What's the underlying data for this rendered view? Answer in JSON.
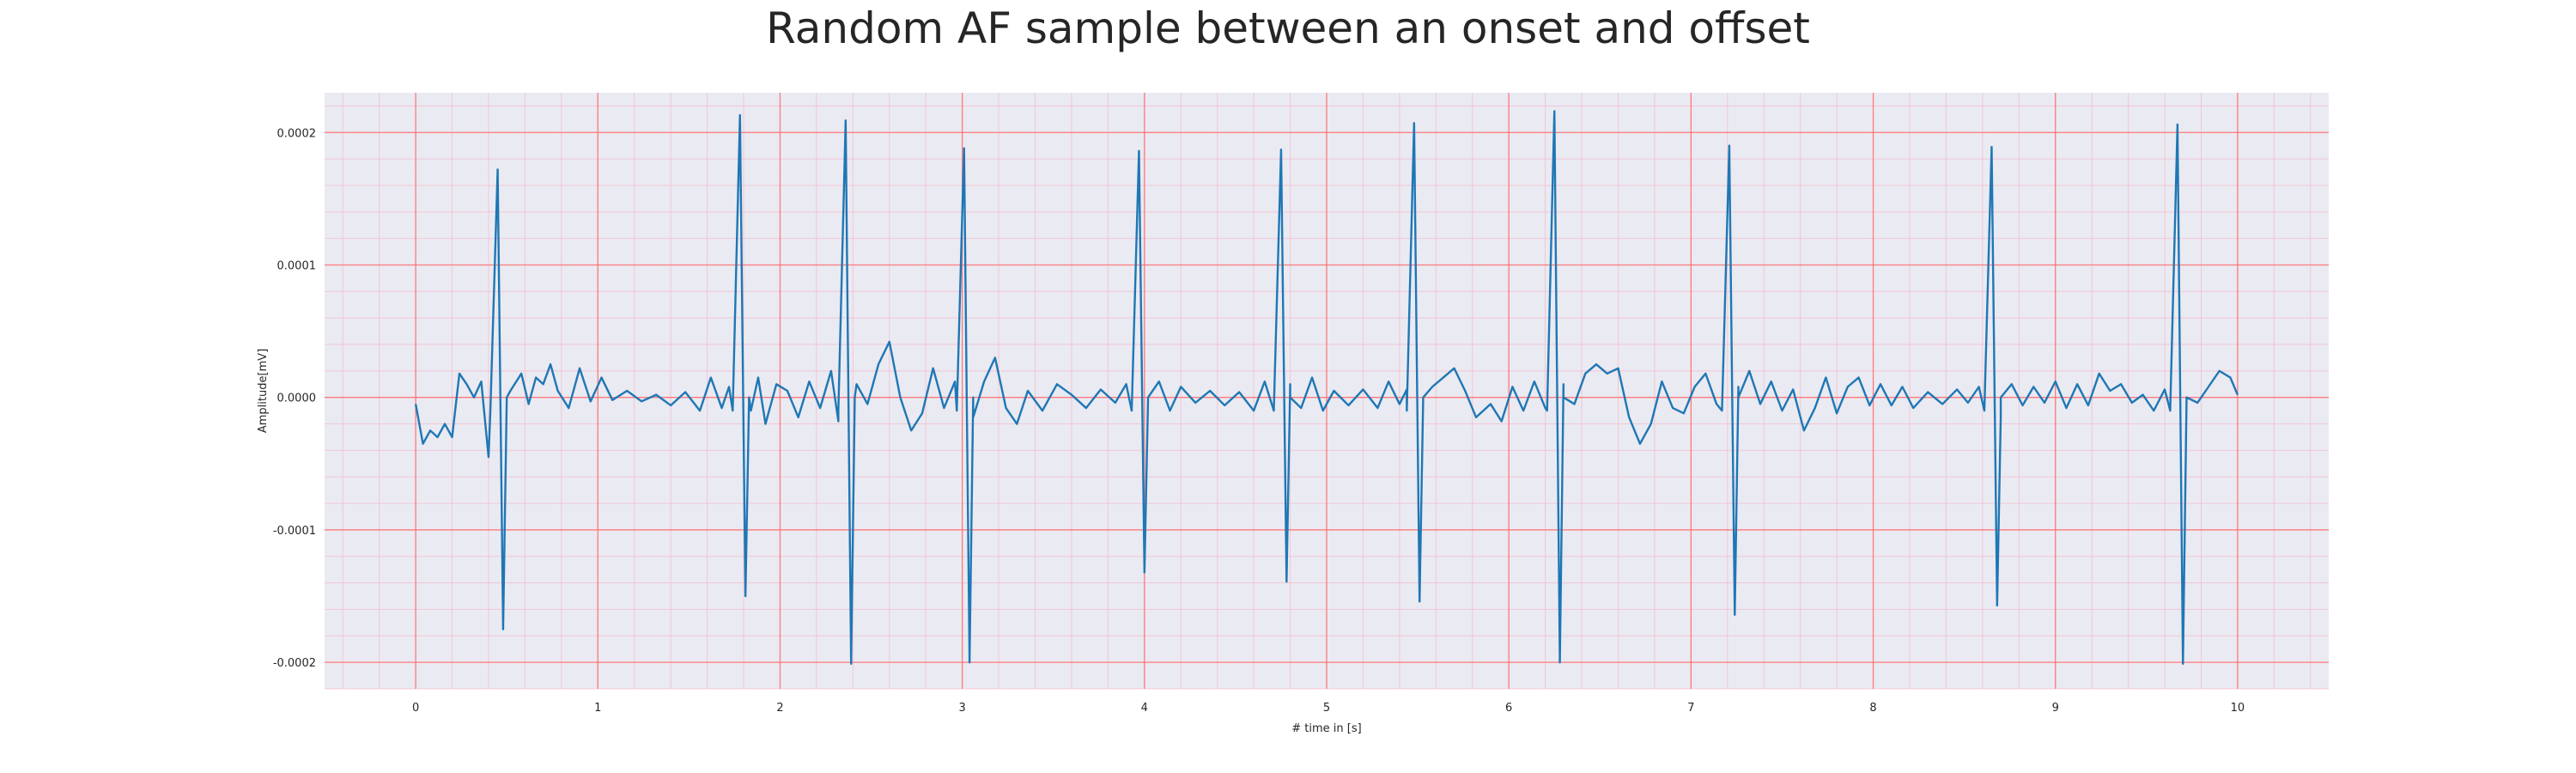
{
  "chart_data": {
    "type": "line",
    "title": "Random AF sample between an onset and offset",
    "xlabel": "# time in [s]",
    "ylabel": "Amplitude[mV]",
    "xlim": [
      -0.5,
      10.5
    ],
    "ylim": [
      -0.00022,
      0.00023
    ],
    "xticks": [
      0,
      1,
      2,
      3,
      4,
      5,
      6,
      7,
      8,
      9,
      10
    ],
    "xtick_labels": [
      "0",
      "1",
      "2",
      "3",
      "4",
      "5",
      "6",
      "7",
      "8",
      "9",
      "10"
    ],
    "yticks": [
      -0.0002,
      -0.0001,
      0.0,
      0.0001,
      0.0002
    ],
    "ytick_labels": [
      "-0.0002",
      "-0.0001",
      "0.0000",
      "0.0001",
      "0.0002"
    ],
    "grid": true,
    "minor_grid": true,
    "colors": {
      "line": "#1f77b4",
      "major_grid": "#ff6b6b",
      "minor_grid": "#f4b8c8",
      "plot_background": "#eaeaf2"
    },
    "beats": [
      {
        "t": 0.45,
        "peak": 0.000172,
        "trough": -0.000175
      },
      {
        "t": 1.78,
        "peak": 0.000213,
        "trough": -0.00015
      },
      {
        "t": 2.36,
        "peak": 0.000209,
        "trough": -0.000201
      },
      {
        "t": 3.01,
        "peak": 0.000188,
        "trough": -0.0002
      },
      {
        "t": 3.97,
        "peak": 0.000186,
        "trough": -0.000132
      },
      {
        "t": 4.75,
        "peak": 0.000187,
        "trough": -0.000139
      },
      {
        "t": 5.48,
        "peak": 0.000207,
        "trough": -0.000154
      },
      {
        "t": 6.25,
        "peak": 0.000216,
        "trough": -0.0002
      },
      {
        "t": 7.21,
        "peak": 0.00019,
        "trough": -0.000164
      },
      {
        "t": 8.65,
        "peak": 0.000189,
        "trough": -0.000157
      },
      {
        "t": 9.67,
        "peak": 0.000206,
        "trough": -0.000201
      }
    ],
    "baseline_points": [
      {
        "t": 0.0,
        "v": -5e-06
      },
      {
        "t": 0.04,
        "v": -3.5e-05
      },
      {
        "t": 0.08,
        "v": -2.5e-05
      },
      {
        "t": 0.12,
        "v": -3e-05
      },
      {
        "t": 0.16,
        "v": -2e-05
      },
      {
        "t": 0.2,
        "v": -3e-05
      },
      {
        "t": 0.24,
        "v": 1.8e-05
      },
      {
        "t": 0.28,
        "v": 1e-05
      },
      {
        "t": 0.32,
        "v": 0.0
      },
      {
        "t": 0.36,
        "v": 1.2e-05
      },
      {
        "t": 0.4,
        "v": -4.5e-05
      },
      {
        "t": 0.52,
        "v": 5e-06
      },
      {
        "t": 0.58,
        "v": 1.8e-05
      },
      {
        "t": 0.62,
        "v": -5e-06
      },
      {
        "t": 0.66,
        "v": 1.5e-05
      },
      {
        "t": 0.7,
        "v": 1e-05
      },
      {
        "t": 0.74,
        "v": 2.5e-05
      },
      {
        "t": 0.78,
        "v": 5e-06
      },
      {
        "t": 0.84,
        "v": -8e-06
      },
      {
        "t": 0.9,
        "v": 2.2e-05
      },
      {
        "t": 0.96,
        "v": -3e-06
      },
      {
        "t": 1.02,
        "v": 1.5e-05
      },
      {
        "t": 1.08,
        "v": -2e-06
      },
      {
        "t": 1.16,
        "v": 5e-06
      },
      {
        "t": 1.24,
        "v": -3e-06
      },
      {
        "t": 1.32,
        "v": 2e-06
      },
      {
        "t": 1.4,
        "v": -6e-06
      },
      {
        "t": 1.48,
        "v": 4e-06
      },
      {
        "t": 1.56,
        "v": -1e-05
      },
      {
        "t": 1.62,
        "v": 1.5e-05
      },
      {
        "t": 1.68,
        "v": -8e-06
      },
      {
        "t": 1.72,
        "v": 8e-06
      },
      {
        "t": 1.84,
        "v": -1e-05
      },
      {
        "t": 1.88,
        "v": 1.5e-05
      },
      {
        "t": 1.92,
        "v": -2e-05
      },
      {
        "t": 1.98,
        "v": 1e-05
      },
      {
        "t": 2.04,
        "v": 5e-06
      },
      {
        "t": 2.1,
        "v": -1.5e-05
      },
      {
        "t": 2.16,
        "v": 1.2e-05
      },
      {
        "t": 2.22,
        "v": -8e-06
      },
      {
        "t": 2.28,
        "v": 2e-05
      },
      {
        "t": 2.32,
        "v": -1.8e-05
      },
      {
        "t": 2.42,
        "v": 1e-05
      },
      {
        "t": 2.48,
        "v": -5e-06
      },
      {
        "t": 2.54,
        "v": 2.5e-05
      },
      {
        "t": 2.6,
        "v": 4.2e-05
      },
      {
        "t": 2.66,
        "v": 0.0
      },
      {
        "t": 2.72,
        "v": -2.5e-05
      },
      {
        "t": 2.78,
        "v": -1.2e-05
      },
      {
        "t": 2.84,
        "v": 2.2e-05
      },
      {
        "t": 2.9,
        "v": -8e-06
      },
      {
        "t": 2.96,
        "v": 1.2e-05
      },
      {
        "t": 3.06,
        "v": -1.5e-05
      },
      {
        "t": 3.12,
        "v": 1.2e-05
      },
      {
        "t": 3.18,
        "v": 3e-05
      },
      {
        "t": 3.24,
        "v": -8e-06
      },
      {
        "t": 3.3,
        "v": -2e-05
      },
      {
        "t": 3.36,
        "v": 5e-06
      },
      {
        "t": 3.44,
        "v": -1e-05
      },
      {
        "t": 3.52,
        "v": 1e-05
      },
      {
        "t": 3.6,
        "v": 2e-06
      },
      {
        "t": 3.68,
        "v": -8e-06
      },
      {
        "t": 3.76,
        "v": 6e-06
      },
      {
        "t": 3.84,
        "v": -4e-06
      },
      {
        "t": 3.9,
        "v": 1e-05
      },
      {
        "t": 3.94,
        "v": -6e-06
      },
      {
        "t": 4.02,
        "v": 0.0
      },
      {
        "t": 4.08,
        "v": 1.2e-05
      },
      {
        "t": 4.14,
        "v": -1e-05
      },
      {
        "t": 4.2,
        "v": 8e-06
      },
      {
        "t": 4.28,
        "v": -4e-06
      },
      {
        "t": 4.36,
        "v": 5e-06
      },
      {
        "t": 4.44,
        "v": -6e-06
      },
      {
        "t": 4.52,
        "v": 4e-06
      },
      {
        "t": 4.6,
        "v": -1e-05
      },
      {
        "t": 4.66,
        "v": 1.2e-05
      },
      {
        "t": 4.72,
        "v": -1.2e-05
      },
      {
        "t": 4.8,
        "v": 1e-05
      },
      {
        "t": 4.86,
        "v": -8e-06
      },
      {
        "t": 4.92,
        "v": 1.5e-05
      },
      {
        "t": 4.98,
        "v": -1e-05
      },
      {
        "t": 5.04,
        "v": 5e-06
      },
      {
        "t": 5.12,
        "v": -6e-06
      },
      {
        "t": 5.2,
        "v": 6e-06
      },
      {
        "t": 5.28,
        "v": -8e-06
      },
      {
        "t": 5.34,
        "v": 1.2e-05
      },
      {
        "t": 5.4,
        "v": -5e-06
      },
      {
        "t": 5.44,
        "v": 6e-06
      },
      {
        "t": 5.52,
        "v": -5e-06
      },
      {
        "t": 5.58,
        "v": 8e-06
      },
      {
        "t": 5.64,
        "v": 1.5e-05
      },
      {
        "t": 5.7,
        "v": 2.2e-05
      },
      {
        "t": 5.76,
        "v": 5e-06
      },
      {
        "t": 5.82,
        "v": -1.5e-05
      },
      {
        "t": 5.9,
        "v": -5e-06
      },
      {
        "t": 5.96,
        "v": -1.8e-05
      },
      {
        "t": 6.02,
        "v": 8e-06
      },
      {
        "t": 6.08,
        "v": -1e-05
      },
      {
        "t": 6.14,
        "v": 1.2e-05
      },
      {
        "t": 6.2,
        "v": -8e-06
      },
      {
        "t": 6.3,
        "v": 1e-05
      },
      {
        "t": 6.36,
        "v": -5e-06
      },
      {
        "t": 6.42,
        "v": 1.8e-05
      },
      {
        "t": 6.48,
        "v": 2.5e-05
      },
      {
        "t": 6.54,
        "v": 1.8e-05
      },
      {
        "t": 6.6,
        "v": 2.2e-05
      },
      {
        "t": 6.66,
        "v": -1.5e-05
      },
      {
        "t": 6.72,
        "v": -3.5e-05
      },
      {
        "t": 6.78,
        "v": -2e-05
      },
      {
        "t": 6.84,
        "v": 1.2e-05
      },
      {
        "t": 6.9,
        "v": -8e-06
      },
      {
        "t": 6.96,
        "v": -1.2e-05
      },
      {
        "t": 7.02,
        "v": 8e-06
      },
      {
        "t": 7.08,
        "v": 1.8e-05
      },
      {
        "t": 7.14,
        "v": -5e-06
      },
      {
        "t": 7.18,
        "v": 5e-06
      },
      {
        "t": 7.26,
        "v": 8e-06
      },
      {
        "t": 7.32,
        "v": 2e-05
      },
      {
        "t": 7.38,
        "v": -5e-06
      },
      {
        "t": 7.44,
        "v": 1.2e-05
      },
      {
        "t": 7.5,
        "v": -1e-05
      },
      {
        "t": 7.56,
        "v": 6e-06
      },
      {
        "t": 7.62,
        "v": -2.5e-05
      },
      {
        "t": 7.68,
        "v": -8e-06
      },
      {
        "t": 7.74,
        "v": 1.5e-05
      },
      {
        "t": 7.8,
        "v": -1.2e-05
      },
      {
        "t": 7.86,
        "v": 8e-06
      },
      {
        "t": 7.92,
        "v": 1.5e-05
      },
      {
        "t": 7.98,
        "v": -6e-06
      },
      {
        "t": 8.04,
        "v": 1e-05
      },
      {
        "t": 8.1,
        "v": -6e-06
      },
      {
        "t": 8.16,
        "v": 8e-06
      },
      {
        "t": 8.22,
        "v": -8e-06
      },
      {
        "t": 8.3,
        "v": 4e-06
      },
      {
        "t": 8.38,
        "v": -5e-06
      },
      {
        "t": 8.46,
        "v": 6e-06
      },
      {
        "t": 8.52,
        "v": -4e-06
      },
      {
        "t": 8.58,
        "v": 8e-06
      },
      {
        "t": 8.62,
        "v": -3e-05
      },
      {
        "t": 8.7,
        "v": -1.5e-05
      },
      {
        "t": 8.76,
        "v": 1e-05
      },
      {
        "t": 8.82,
        "v": -6e-06
      },
      {
        "t": 8.88,
        "v": 8e-06
      },
      {
        "t": 8.94,
        "v": -4e-06
      },
      {
        "t": 9.0,
        "v": 1.2e-05
      },
      {
        "t": 9.06,
        "v": -8e-06
      },
      {
        "t": 9.12,
        "v": 1e-05
      },
      {
        "t": 9.18,
        "v": -6e-06
      },
      {
        "t": 9.24,
        "v": 1.8e-05
      },
      {
        "t": 9.3,
        "v": 5e-06
      },
      {
        "t": 9.36,
        "v": 1e-05
      },
      {
        "t": 9.42,
        "v": -4e-06
      },
      {
        "t": 9.48,
        "v": 2e-06
      },
      {
        "t": 9.54,
        "v": -1e-05
      },
      {
        "t": 9.6,
        "v": 6e-06
      },
      {
        "t": 9.64,
        "v": -3e-05
      },
      {
        "t": 9.72,
        "v": 0.0
      },
      {
        "t": 9.78,
        "v": -4e-06
      },
      {
        "t": 9.84,
        "v": 8e-06
      },
      {
        "t": 9.9,
        "v": 2e-05
      },
      {
        "t": 9.96,
        "v": 1.5e-05
      },
      {
        "t": 10.0,
        "v": 2e-06
      }
    ]
  }
}
